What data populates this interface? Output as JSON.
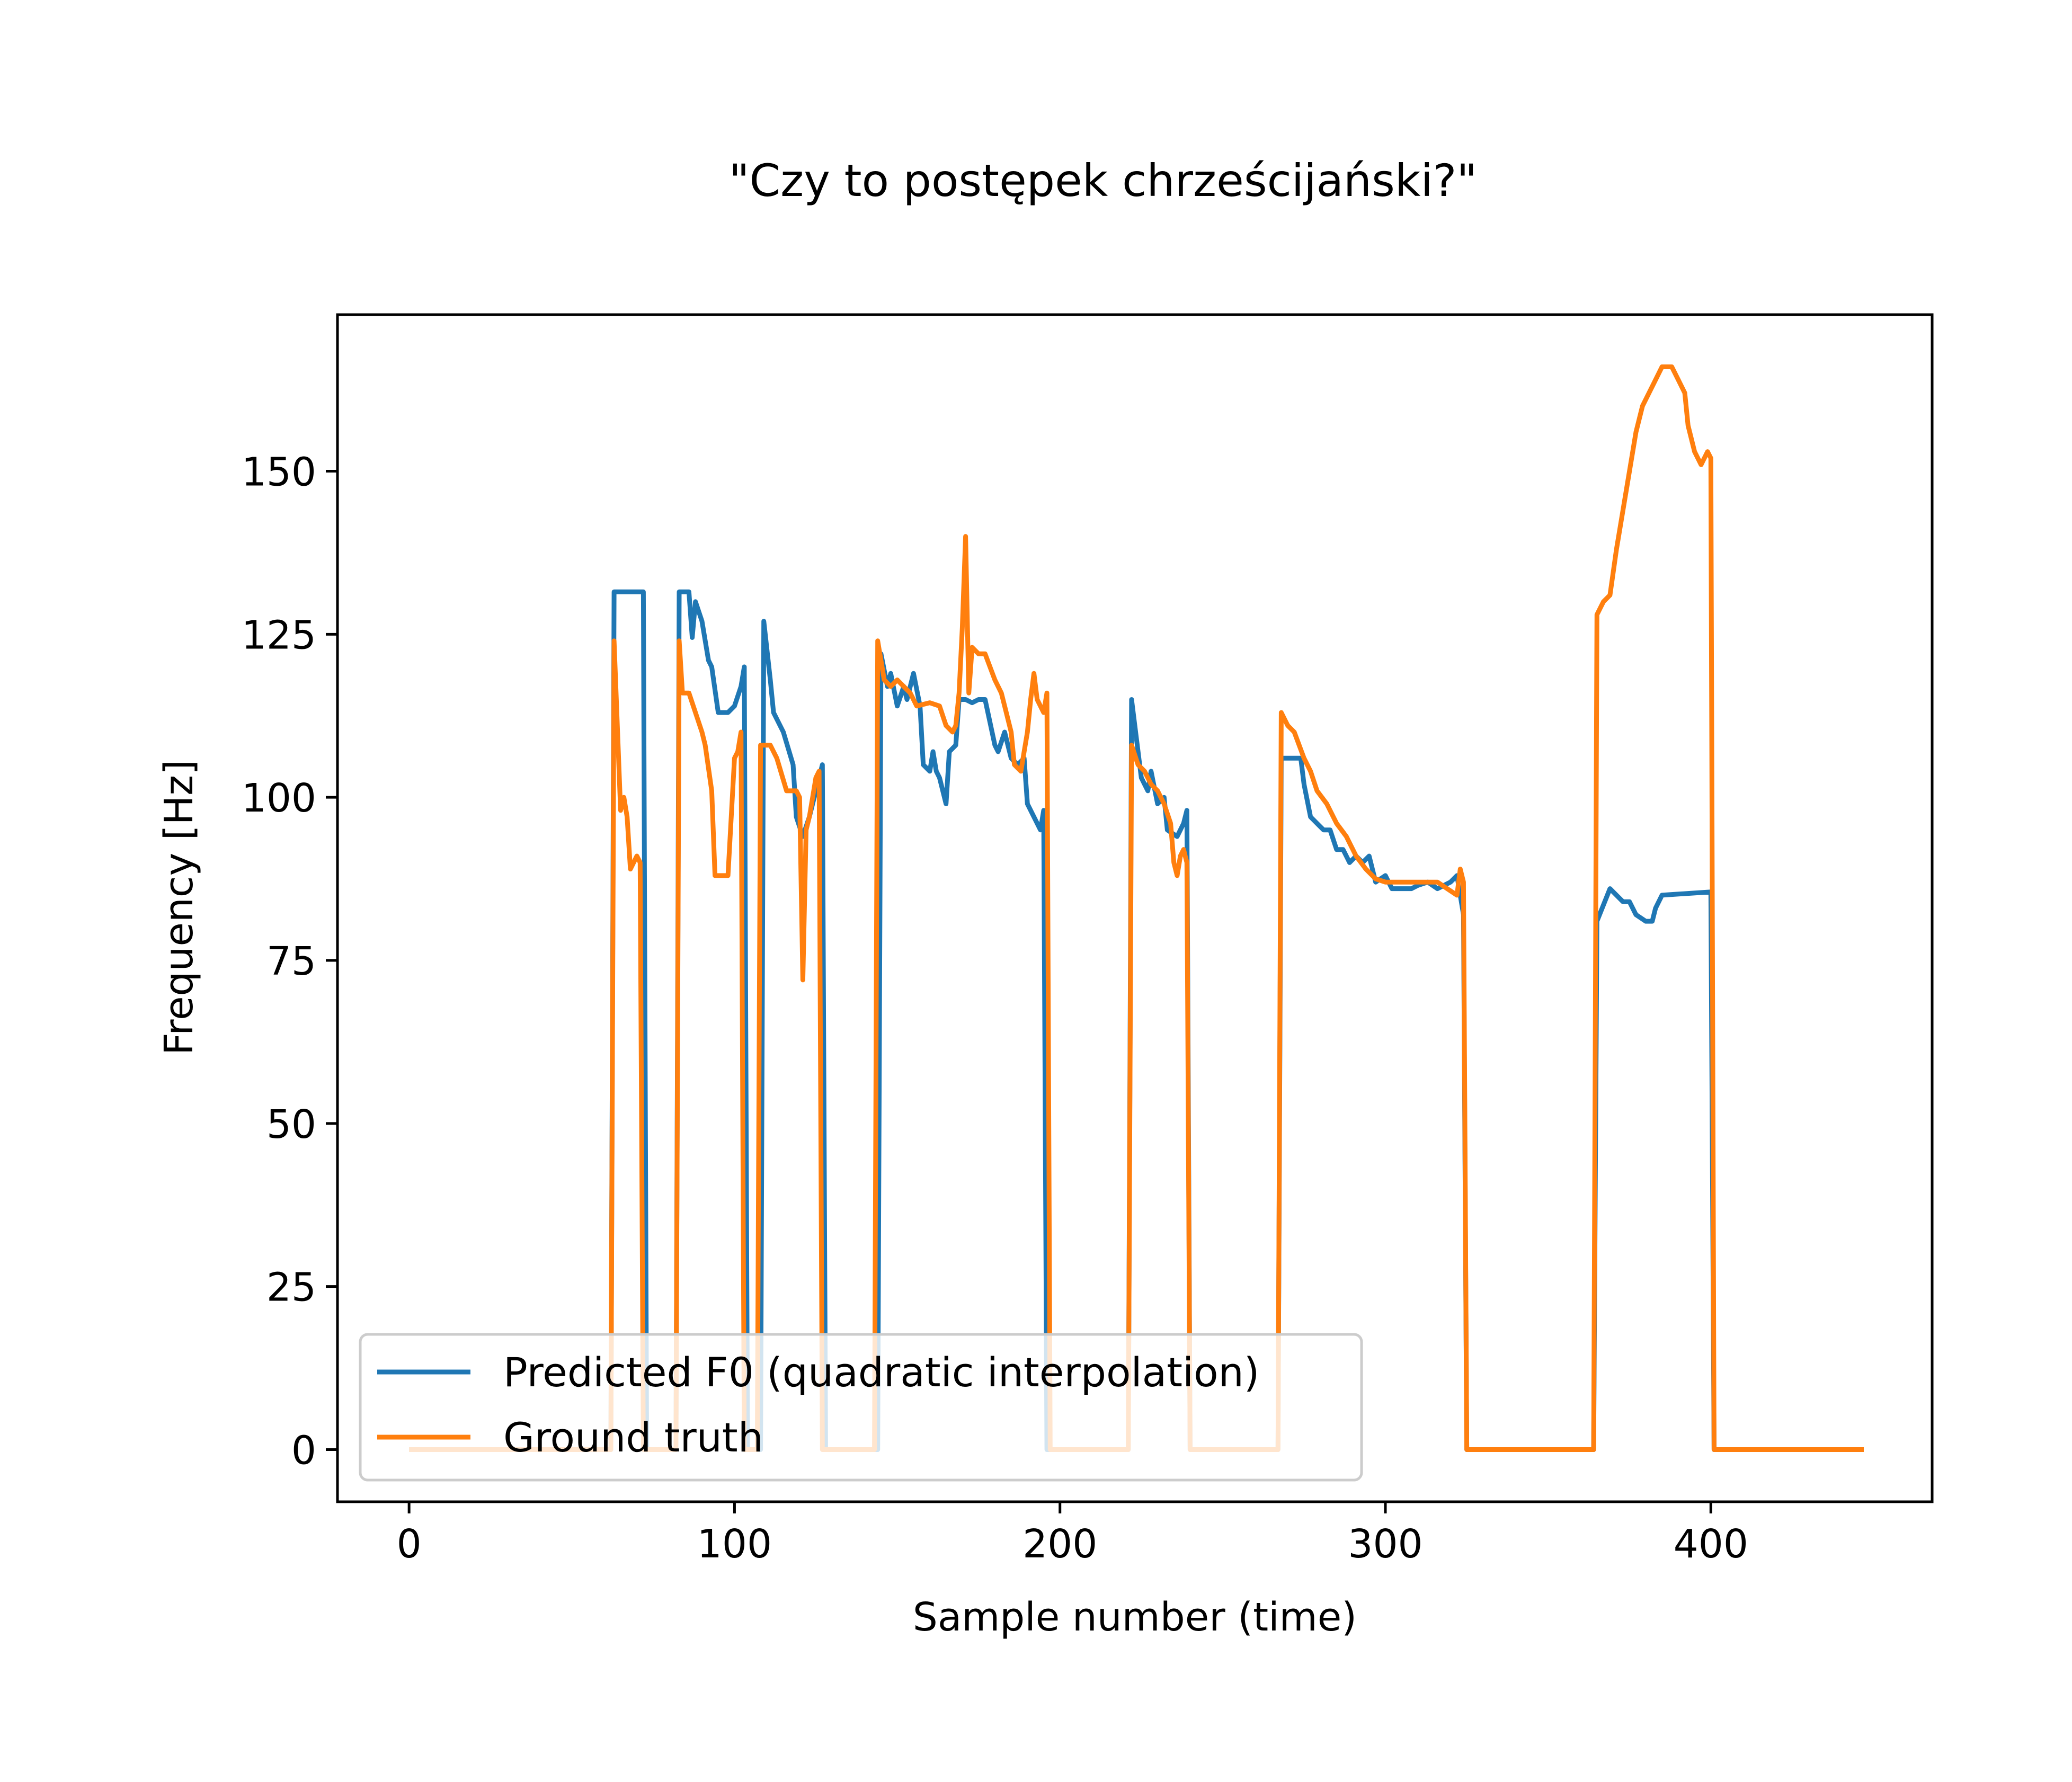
{
  "chart_data": {
    "type": "line",
    "title": "\"Czy to postępek chrześcijański?\"",
    "xlabel": "Sample number (time)",
    "ylabel": "Frequency [Hz]",
    "xlim": [
      -22,
      468
    ],
    "ylim": [
      -8,
      174
    ],
    "xticks": [
      0,
      100,
      200,
      300,
      400
    ],
    "yticks": [
      0,
      25,
      50,
      75,
      100,
      125,
      150
    ],
    "grid": false,
    "legend_position": "lower left",
    "series": [
      {
        "name": "Predicted F0 (quadratic interpolation)",
        "color": "#1f77b4",
        "points": [
          [
            0,
            0
          ],
          [
            62,
            0
          ],
          [
            63,
            131.5
          ],
          [
            72,
            131.5
          ],
          [
            73,
            0
          ],
          [
            82,
            0
          ],
          [
            83,
            131.5
          ],
          [
            86,
            131.5
          ],
          [
            87,
            124.5
          ],
          [
            88,
            130
          ],
          [
            90,
            127
          ],
          [
            92,
            121
          ],
          [
            93,
            120
          ],
          [
            95,
            113
          ],
          [
            98,
            113
          ],
          [
            100,
            114
          ],
          [
            102,
            117
          ],
          [
            103,
            120
          ],
          [
            104,
            0
          ],
          [
            108,
            0
          ],
          [
            109,
            127
          ],
          [
            111,
            118
          ],
          [
            112,
            113
          ],
          [
            115,
            110
          ],
          [
            118,
            105
          ],
          [
            119,
            97
          ],
          [
            121,
            94
          ],
          [
            123,
            97
          ],
          [
            125,
            101
          ],
          [
            127,
            105
          ],
          [
            128,
            0
          ],
          [
            144,
            0
          ],
          [
            145,
            122
          ],
          [
            147,
            117
          ],
          [
            148,
            119
          ],
          [
            150,
            114
          ],
          [
            152,
            117
          ],
          [
            153,
            115
          ],
          [
            155,
            119
          ],
          [
            157,
            114
          ],
          [
            158,
            105
          ],
          [
            160,
            104
          ],
          [
            161,
            107
          ],
          [
            162,
            104
          ],
          [
            163,
            103
          ],
          [
            165,
            99
          ],
          [
            166,
            107
          ],
          [
            168,
            108
          ],
          [
            169,
            115
          ],
          [
            171,
            115
          ],
          [
            173,
            114.5
          ],
          [
            175,
            115
          ],
          [
            177,
            115
          ],
          [
            180,
            108
          ],
          [
            181,
            107
          ],
          [
            183,
            110
          ],
          [
            185,
            106
          ],
          [
            187,
            105
          ],
          [
            189,
            106
          ],
          [
            190,
            99
          ],
          [
            192,
            97
          ],
          [
            194,
            95
          ],
          [
            195,
            98
          ],
          [
            196,
            0
          ],
          [
            221,
            0
          ],
          [
            222,
            115
          ],
          [
            225,
            103
          ],
          [
            227,
            101
          ],
          [
            228,
            104
          ],
          [
            230,
            99
          ],
          [
            232,
            100
          ],
          [
            233,
            95
          ],
          [
            236,
            94
          ],
          [
            238,
            96
          ],
          [
            239,
            98
          ],
          [
            240,
            0
          ],
          [
            267,
            0
          ],
          [
            268,
            106
          ],
          [
            274,
            106
          ],
          [
            275,
            102
          ],
          [
            277,
            97
          ],
          [
            279,
            96
          ],
          [
            281,
            95
          ],
          [
            283,
            95
          ],
          [
            285,
            92
          ],
          [
            287,
            92
          ],
          [
            289,
            90
          ],
          [
            291,
            91
          ],
          [
            293,
            90
          ],
          [
            295,
            91
          ],
          [
            297,
            87
          ],
          [
            300,
            88
          ],
          [
            302,
            86
          ],
          [
            304,
            86
          ],
          [
            306,
            86
          ],
          [
            308,
            86
          ],
          [
            310,
            86.5
          ],
          [
            313,
            87
          ],
          [
            316,
            86
          ],
          [
            320,
            87
          ],
          [
            322,
            88
          ],
          [
            324,
            82
          ],
          [
            325,
            0
          ],
          [
            364,
            0
          ],
          [
            365,
            81
          ],
          [
            369,
            86
          ],
          [
            373,
            84
          ],
          [
            375,
            84
          ],
          [
            377,
            82
          ],
          [
            380,
            81
          ],
          [
            382,
            81
          ],
          [
            383,
            83
          ],
          [
            385,
            85
          ],
          [
            400,
            85.5
          ],
          [
            401,
            0
          ],
          [
            447,
            0
          ]
        ]
      },
      {
        "name": "Ground truth",
        "color": "#ff7f0e",
        "points": [
          [
            0,
            0
          ],
          [
            62,
            0
          ],
          [
            63,
            124
          ],
          [
            65,
            98
          ],
          [
            66,
            100
          ],
          [
            67,
            97
          ],
          [
            68,
            89
          ],
          [
            70,
            91
          ],
          [
            71,
            90
          ],
          [
            72,
            0
          ],
          [
            82,
            0
          ],
          [
            83,
            124
          ],
          [
            84,
            116
          ],
          [
            86,
            116
          ],
          [
            90,
            110
          ],
          [
            91,
            108
          ],
          [
            93,
            101
          ],
          [
            94,
            88
          ],
          [
            98,
            88
          ],
          [
            100,
            106
          ],
          [
            101,
            107
          ],
          [
            102,
            110
          ],
          [
            103,
            0
          ],
          [
            107,
            0
          ],
          [
            108,
            108
          ],
          [
            111,
            108
          ],
          [
            113,
            106
          ],
          [
            116,
            101
          ],
          [
            119,
            101
          ],
          [
            120,
            100
          ],
          [
            121,
            72
          ],
          [
            122,
            95
          ],
          [
            123,
            97
          ],
          [
            124,
            100
          ],
          [
            125,
            103
          ],
          [
            126,
            104
          ],
          [
            127,
            0
          ],
          [
            143,
            0
          ],
          [
            144,
            124
          ],
          [
            146,
            118
          ],
          [
            148,
            117
          ],
          [
            150,
            118
          ],
          [
            152,
            117
          ],
          [
            154,
            116
          ],
          [
            156,
            114
          ],
          [
            160,
            114.5
          ],
          [
            163,
            114
          ],
          [
            165,
            111
          ],
          [
            167,
            110
          ],
          [
            168,
            111
          ],
          [
            169,
            116
          ],
          [
            170,
            126
          ],
          [
            171,
            140
          ],
          [
            172,
            116
          ],
          [
            173,
            123
          ],
          [
            175,
            122
          ],
          [
            177,
            122
          ],
          [
            180,
            118
          ],
          [
            182,
            116
          ],
          [
            183,
            114
          ],
          [
            185,
            110
          ],
          [
            186,
            105
          ],
          [
            188,
            104
          ],
          [
            189,
            107
          ],
          [
            190,
            110
          ],
          [
            191,
            115
          ],
          [
            192,
            119
          ],
          [
            193,
            115
          ],
          [
            195,
            113
          ],
          [
            196,
            116
          ],
          [
            197,
            0
          ],
          [
            221,
            0
          ],
          [
            222,
            108
          ],
          [
            224,
            105
          ],
          [
            226,
            104
          ],
          [
            228,
            102
          ],
          [
            230,
            101
          ],
          [
            232,
            99
          ],
          [
            234,
            96
          ],
          [
            235,
            90
          ],
          [
            236,
            88
          ],
          [
            237,
            91
          ],
          [
            238,
            92
          ],
          [
            239,
            90
          ],
          [
            240,
            0
          ],
          [
            267,
            0
          ],
          [
            268,
            113
          ],
          [
            270,
            111
          ],
          [
            272,
            110
          ],
          [
            275,
            106
          ],
          [
            277,
            104
          ],
          [
            279,
            101
          ],
          [
            282,
            99
          ],
          [
            285,
            96
          ],
          [
            288,
            94
          ],
          [
            291,
            91
          ],
          [
            294,
            89
          ],
          [
            297,
            87.5
          ],
          [
            300,
            87
          ],
          [
            304,
            87
          ],
          [
            310,
            87
          ],
          [
            313,
            87
          ],
          [
            316,
            87
          ],
          [
            319,
            86
          ],
          [
            322,
            85
          ],
          [
            323,
            89
          ],
          [
            324,
            87
          ],
          [
            325,
            0
          ],
          [
            364,
            0
          ],
          [
            365,
            128
          ],
          [
            367,
            130
          ],
          [
            369,
            131
          ],
          [
            371,
            138
          ],
          [
            373,
            144
          ],
          [
            375,
            150
          ],
          [
            377,
            156
          ],
          [
            379,
            160
          ],
          [
            381,
            162
          ],
          [
            383,
            164
          ],
          [
            385,
            166
          ],
          [
            388,
            166
          ],
          [
            390,
            164
          ],
          [
            392,
            162
          ],
          [
            393,
            157
          ],
          [
            395,
            153
          ],
          [
            397,
            151
          ],
          [
            398,
            152
          ],
          [
            399,
            153
          ],
          [
            400,
            152
          ],
          [
            401,
            0
          ],
          [
            447,
            0
          ]
        ]
      }
    ]
  }
}
